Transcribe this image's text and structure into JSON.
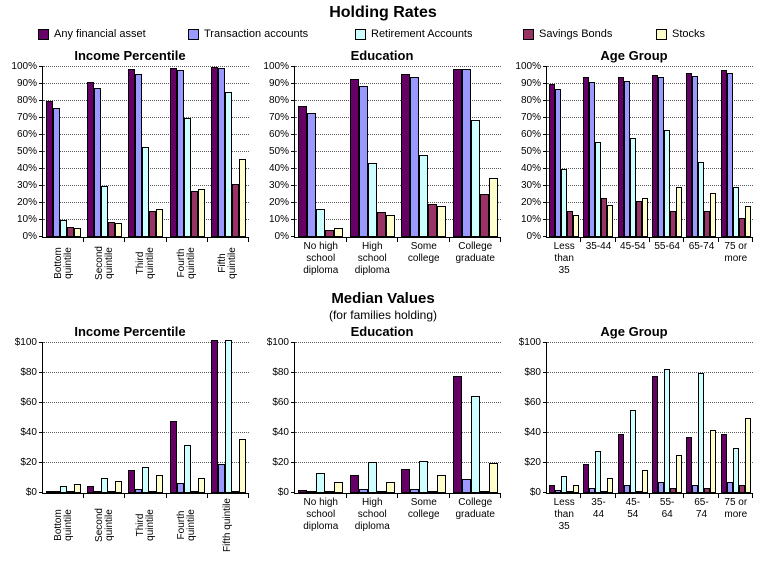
{
  "page": {
    "title": "Holding Rates",
    "median_title": "Median Values",
    "median_subtitle": "(for families holding)"
  },
  "legend": {
    "position": "top",
    "items": [
      {
        "label": "Any financial asset",
        "color": "#660066"
      },
      {
        "label": "Transaction accounts",
        "color": "#9999FF"
      },
      {
        "label": "Retirement Accounts",
        "color": "#CCFFFF"
      },
      {
        "label": "Savings Bonds",
        "color": "#993366"
      },
      {
        "label": "Stocks",
        "color": "#FFFFCC"
      }
    ]
  },
  "chart_data": [
    {
      "id": "holding-rates-income-percentile",
      "type": "bar",
      "row": "top",
      "title": "Income Percentile",
      "y_format": "percent",
      "ylim": [
        0,
        100
      ],
      "y_tick_step": 10,
      "y_ticks": [
        "0%",
        "10%",
        "20%",
        "30%",
        "40%",
        "50%",
        "60%",
        "70%",
        "80%",
        "90%",
        "100%"
      ],
      "grid": "dotted-horizontal",
      "x_labels_rotated": true,
      "categories": [
        "Bottom\nquintile",
        "Second\nquintile",
        "Third\nquintile",
        "Fourth\nquintile",
        "Fifth\nquintile"
      ],
      "series": [
        {
          "name": "Any financial asset",
          "color": "#660066",
          "values": [
            80,
            91,
            99,
            99.5,
            100
          ]
        },
        {
          "name": "Transaction accounts",
          "color": "#9999FF",
          "values": [
            76,
            87.5,
            96,
            98.5,
            99.5
          ]
        },
        {
          "name": "Retirement Accounts",
          "color": "#CCFFFF",
          "values": [
            10,
            30,
            53,
            70,
            85
          ]
        },
        {
          "name": "Savings Bonds",
          "color": "#993366",
          "values": [
            6,
            9,
            15.5,
            27,
            31
          ]
        },
        {
          "name": "Stocks",
          "color": "#FFFFCC",
          "values": [
            5,
            8,
            16.5,
            28,
            46
          ]
        }
      ]
    },
    {
      "id": "holding-rates-education",
      "type": "bar",
      "row": "top",
      "title": "Education",
      "y_format": "percent",
      "ylim": [
        0,
        100
      ],
      "y_tick_step": 10,
      "y_ticks": [
        "0%",
        "10%",
        "20%",
        "30%",
        "40%",
        "50%",
        "60%",
        "70%",
        "80%",
        "90%",
        "100%"
      ],
      "grid": "dotted-horizontal",
      "x_labels_rotated": false,
      "categories": [
        "No high\nschool\ndiploma",
        "High\nschool\ndiploma",
        "Some\ncollege",
        "College\ngraduate"
      ],
      "series": [
        {
          "name": "Any financial asset",
          "color": "#660066",
          "values": [
            77,
            93,
            96,
            99
          ]
        },
        {
          "name": "Transaction accounts",
          "color": "#9999FF",
          "values": [
            73,
            89,
            94,
            99
          ]
        },
        {
          "name": "Retirement Accounts",
          "color": "#CCFFFF",
          "values": [
            16.5,
            43.5,
            48,
            69
          ]
        },
        {
          "name": "Savings Bonds",
          "color": "#993366",
          "values": [
            4,
            14.5,
            19.5,
            25
          ]
        },
        {
          "name": "Stocks",
          "color": "#FFFFCC",
          "values": [
            5,
            13,
            18,
            35
          ]
        }
      ]
    },
    {
      "id": "holding-rates-age-group",
      "type": "bar",
      "row": "top",
      "title": "Age Group",
      "y_format": "percent",
      "ylim": [
        0,
        100
      ],
      "y_tick_step": 10,
      "y_ticks": [
        "0%",
        "10%",
        "20%",
        "30%",
        "40%",
        "50%",
        "60%",
        "70%",
        "80%",
        "90%",
        "100%"
      ],
      "grid": "dotted-horizontal",
      "x_labels_rotated": false,
      "categories": [
        "Less\nthan\n35",
        "35-44",
        "45-54",
        "55-64",
        "65-74",
        "75 or\nmore"
      ],
      "series": [
        {
          "name": "Any financial asset",
          "color": "#660066",
          "values": [
            90,
            94,
            94,
            95,
            96.5,
            98
          ]
        },
        {
          "name": "Transaction accounts",
          "color": "#9999FF",
          "values": [
            87,
            91,
            92,
            94,
            94.5,
            96.5
          ]
        },
        {
          "name": "Retirement Accounts",
          "color": "#CCFFFF",
          "values": [
            40,
            56,
            58,
            63,
            44,
            29.5
          ]
        },
        {
          "name": "Savings Bonds",
          "color": "#993366",
          "values": [
            15,
            23,
            21,
            15,
            15,
            11
          ]
        },
        {
          "name": "Stocks",
          "color": "#FFFFCC",
          "values": [
            13,
            19,
            23,
            29.5,
            26,
            18
          ]
        }
      ]
    },
    {
      "id": "median-values-income-percentile",
      "type": "bar",
      "row": "bottom",
      "title": "Income Percentile",
      "y_format": "dollar",
      "ylim": [
        0,
        100
      ],
      "y_tick_step": 20,
      "y_ticks": [
        "$0",
        "$20",
        "$40",
        "$60",
        "$80",
        "$100"
      ],
      "grid": "dotted-horizontal",
      "x_labels_rotated": true,
      "categories": [
        "Bottom\nquintile",
        "Second\nquintile",
        "Third\nquintile",
        "Fourth\nquintile",
        "Fifth quintile"
      ],
      "series": [
        {
          "name": "Any financial asset",
          "color": "#660066",
          "values": [
            1.5,
            4.5,
            15,
            48,
            102
          ]
        },
        {
          "name": "Transaction accounts",
          "color": "#9999FF",
          "values": [
            0.6,
            1.5,
            2.7,
            6.5,
            19.5
          ]
        },
        {
          "name": "Retirement Accounts",
          "color": "#CCFFFF",
          "values": [
            4.5,
            10,
            17,
            32,
            102
          ]
        },
        {
          "name": "Savings Bonds",
          "color": "#993366",
          "values": [
            0.6,
            0.7,
            0.6,
            0.7,
            1.5
          ]
        },
        {
          "name": "Stocks",
          "color": "#FFFFCC",
          "values": [
            6,
            8,
            12,
            10,
            36
          ]
        }
      ]
    },
    {
      "id": "median-values-education",
      "type": "bar",
      "row": "bottom",
      "title": "Education",
      "y_format": "dollar",
      "ylim": [
        0,
        100
      ],
      "y_tick_step": 20,
      "y_ticks": [
        "$0",
        "$20",
        "$40",
        "$60",
        "$80",
        "$100"
      ],
      "grid": "dotted-horizontal",
      "x_labels_rotated": false,
      "categories": [
        "No high\nschool\ndiploma",
        "High\nschool\ndiploma",
        "Some\ncollege",
        "College\ngraduate"
      ],
      "series": [
        {
          "name": "Any financial asset",
          "color": "#660066",
          "values": [
            2,
            12,
            16,
            78
          ]
        },
        {
          "name": "Transaction accounts",
          "color": "#9999FF",
          "values": [
            1.2,
            2.5,
            2.5,
            9.5
          ]
        },
        {
          "name": "Retirement Accounts",
          "color": "#CCFFFF",
          "values": [
            13,
            20.5,
            21,
            64.5
          ]
        },
        {
          "name": "Savings Bonds",
          "color": "#993366",
          "values": [
            0.6,
            0.8,
            0.7,
            1.3
          ]
        },
        {
          "name": "Stocks",
          "color": "#FFFFCC",
          "values": [
            7.5,
            7.5,
            12,
            20
          ]
        }
      ]
    },
    {
      "id": "median-values-age-group",
      "type": "bar",
      "row": "bottom",
      "title": "Age Group",
      "y_format": "dollar",
      "ylim": [
        0,
        100
      ],
      "y_tick_step": 20,
      "y_ticks": [
        "$0",
        "$20",
        "$40",
        "$60",
        "$80",
        "$100"
      ],
      "grid": "dotted-horizontal",
      "x_labels_rotated": false,
      "categories": [
        "Less\nthan\n35",
        "35-\n44",
        "45-\n54",
        "55-\n64",
        "65-\n74",
        "75 or\nmore"
      ],
      "series": [
        {
          "name": "Any financial asset",
          "color": "#660066",
          "values": [
            5.5,
            19.5,
            39,
            78,
            37,
            39.5
          ]
        },
        {
          "name": "Transaction accounts",
          "color": "#9999FF",
          "values": [
            2,
            3.5,
            5,
            7,
            5.5,
            7
          ]
        },
        {
          "name": "Retirement Accounts",
          "color": "#CCFFFF",
          "values": [
            11.5,
            28,
            55.5,
            82.5,
            80,
            30
          ]
        },
        {
          "name": "Savings Bonds",
          "color": "#993366",
          "values": [
            0.5,
            0.8,
            1.5,
            3,
            3.5,
            5.5
          ]
        },
        {
          "name": "Stocks",
          "color": "#FFFFCC",
          "values": [
            5,
            10,
            15,
            25.5,
            42,
            50
          ]
        }
      ]
    }
  ]
}
